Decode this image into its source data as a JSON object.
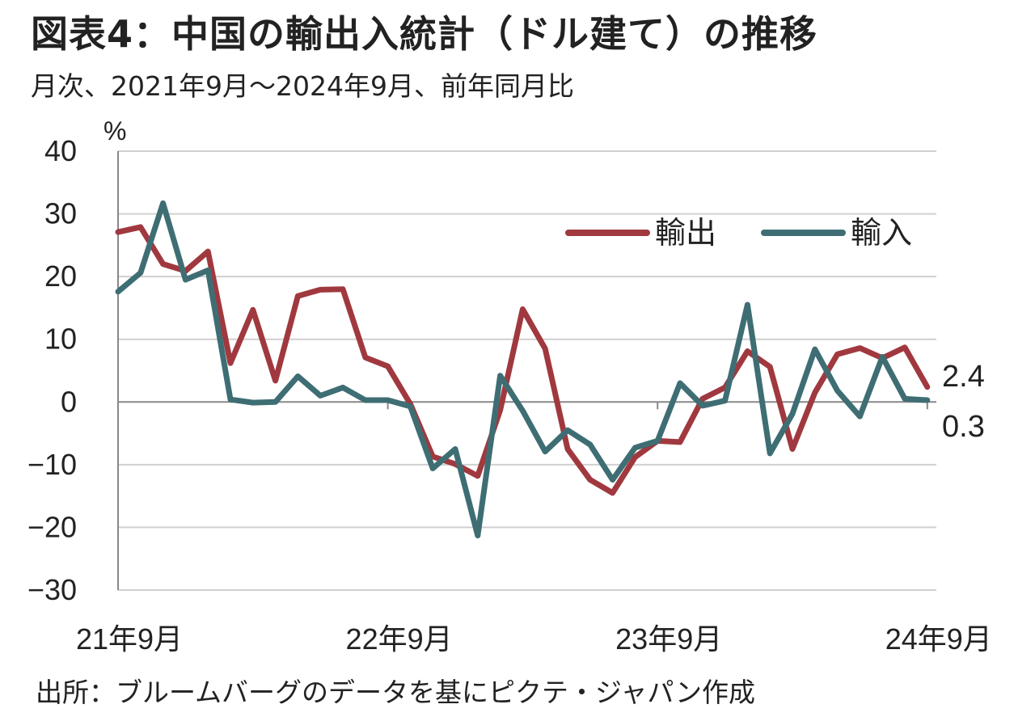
{
  "title": "図表4：中国の輸出入統計（ドル建て）の推移",
  "subtitle": "月次、2021年9月～2024年9月、前年同月比",
  "source": "出所：ブルームバーグのデータを基にピクテ・ジャパン作成",
  "chart_data": {
    "type": "line",
    "y_unit_label": "%",
    "ylim": [
      -30,
      40
    ],
    "yticks": [
      40,
      30,
      20,
      10,
      0,
      -10,
      -20,
      -30
    ],
    "x_tick_labels": [
      {
        "label": "21年9月",
        "index": 0
      },
      {
        "label": "22年9月",
        "index": 12
      },
      {
        "label": "23年9月",
        "index": 24
      },
      {
        "label": "24年9月",
        "index": 36
      }
    ],
    "grid": true,
    "legend_position": "top-right",
    "x": [
      "2021-09",
      "2021-10",
      "2021-11",
      "2021-12",
      "2022-01",
      "2022-02",
      "2022-03",
      "2022-04",
      "2022-05",
      "2022-06",
      "2022-07",
      "2022-08",
      "2022-09",
      "2022-10",
      "2022-11",
      "2022-12",
      "2023-01",
      "2023-02",
      "2023-03",
      "2023-04",
      "2023-05",
      "2023-06",
      "2023-07",
      "2023-08",
      "2023-09",
      "2023-10",
      "2023-11",
      "2023-12",
      "2024-01",
      "2024-02",
      "2024-03",
      "2024-04",
      "2024-05",
      "2024-06",
      "2024-07",
      "2024-08",
      "2024-09"
    ],
    "series": [
      {
        "name": "輸出",
        "color": "#a0393f",
        "values": [
          27.1,
          27.9,
          22.0,
          20.9,
          24.0,
          6.2,
          14.7,
          3.4,
          16.9,
          17.9,
          18.0,
          7.1,
          5.7,
          -0.3,
          -8.7,
          -9.9,
          -11.8,
          -1.3,
          14.8,
          8.5,
          -7.5,
          -12.4,
          -14.5,
          -8.8,
          -6.2,
          -6.4,
          0.5,
          2.3,
          8.1,
          5.6,
          -7.5,
          1.5,
          7.6,
          8.6,
          7.0,
          8.7,
          2.4
        ]
      },
      {
        "name": "輸入",
        "color": "#3e6e74",
        "values": [
          17.6,
          20.6,
          31.7,
          19.5,
          21.0,
          0.4,
          -0.1,
          0.0,
          4.1,
          1.0,
          2.3,
          0.3,
          0.3,
          -0.7,
          -10.6,
          -7.5,
          -21.3,
          4.2,
          -1.4,
          -7.9,
          -4.5,
          -6.8,
          -12.4,
          -7.3,
          -6.2,
          3.0,
          -0.6,
          0.2,
          15.5,
          -8.2,
          -1.9,
          8.4,
          1.8,
          -2.3,
          7.2,
          0.5,
          0.3
        ]
      }
    ],
    "end_labels": [
      {
        "series": "輸出",
        "text": "2.4"
      },
      {
        "series": "輸入",
        "text": "0.3"
      }
    ]
  }
}
